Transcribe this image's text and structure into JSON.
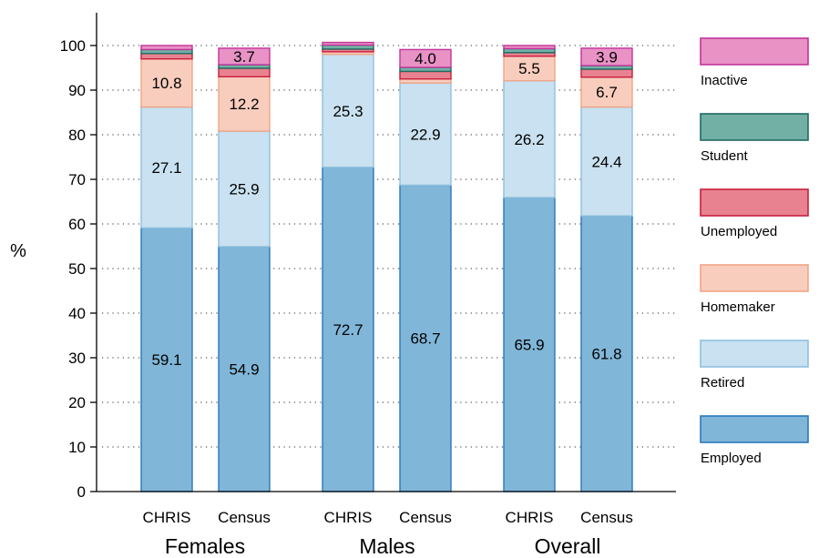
{
  "chart_data": {
    "type": "bar",
    "stacked": true,
    "title": "",
    "ylabel": "%",
    "xlabel": "",
    "ylim": [
      0,
      100
    ],
    "yticks": [
      0,
      10,
      20,
      30,
      40,
      50,
      60,
      70,
      80,
      90,
      100
    ],
    "grid": "horizontal dotted",
    "legend_position": "right",
    "groups": [
      "Females",
      "Males",
      "Overall"
    ],
    "categories": [
      "CHRIS",
      "Census",
      "CHRIS",
      "Census",
      "CHRIS",
      "Census"
    ],
    "category_group": [
      0,
      0,
      1,
      1,
      2,
      2
    ],
    "series": [
      {
        "name": "Employed",
        "values": [
          59.1,
          54.9,
          72.7,
          68.7,
          65.9,
          61.8
        ],
        "labels": [
          "59.1",
          "54.9",
          "72.7",
          "68.7",
          "65.9",
          "61.8"
        ],
        "fill": "#80b6d8",
        "stroke": "#2b78b9"
      },
      {
        "name": "Retired",
        "values": [
          27.1,
          25.9,
          25.3,
          22.9,
          26.2,
          24.4
        ],
        "labels": [
          "27.1",
          "25.9",
          "25.3",
          "22.9",
          "26.2",
          "24.4"
        ],
        "fill": "#c9e1f0",
        "stroke": "#8fc0df"
      },
      {
        "name": "Homemaker",
        "values": [
          10.8,
          12.2,
          0.6,
          0.9,
          5.5,
          6.7
        ],
        "labels": [
          "10.8",
          "12.2",
          "",
          "",
          "5.5",
          "6.7"
        ],
        "fill": "#f8cdbd",
        "stroke": "#f0a586"
      },
      {
        "name": "Unemployed",
        "values": [
          1.2,
          1.9,
          0.6,
          1.7,
          0.8,
          1.8
        ],
        "labels": [
          "",
          "",
          "",
          "",
          "",
          ""
        ],
        "fill": "#e98290",
        "stroke": "#c81e3c"
      },
      {
        "name": "Student",
        "values": [
          0.9,
          0.8,
          0.9,
          0.9,
          0.9,
          0.8
        ],
        "labels": [
          "",
          "",
          "",
          "",
          "",
          ""
        ],
        "fill": "#72b0a5",
        "stroke": "#1f6b62"
      },
      {
        "name": "Inactive",
        "values": [
          0.9,
          3.7,
          0.6,
          4.0,
          0.7,
          3.9
        ],
        "labels": [
          "",
          "3.7",
          "",
          "4.0",
          "",
          "3.9"
        ],
        "fill": "#e892c6",
        "stroke": "#c2349a"
      }
    ],
    "colors": {
      "axis": "#000000",
      "grid": "#555555",
      "label_text": "#000000"
    }
  }
}
